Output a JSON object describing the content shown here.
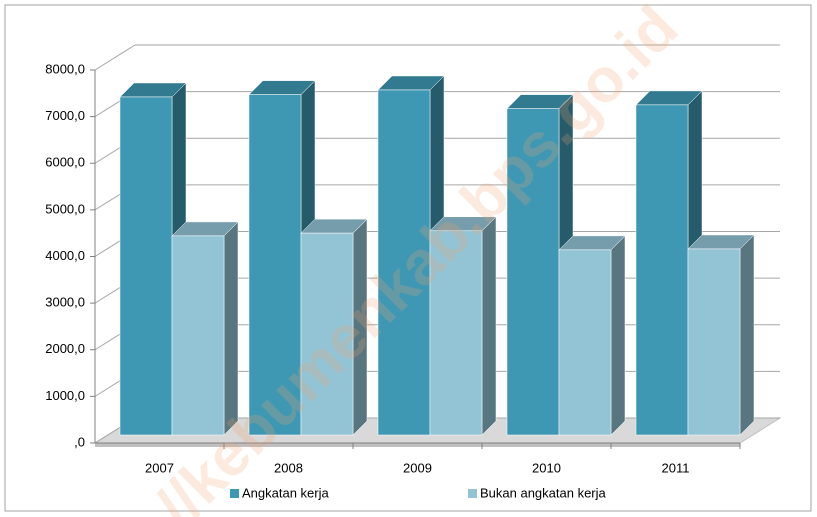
{
  "chart_data": {
    "type": "bar3d",
    "categories": [
      "2007",
      "2008",
      "2009",
      "2010",
      "2011"
    ],
    "series": [
      {
        "name": "Angkatan kerja",
        "color": "#3f98b3",
        "values": [
          7250,
          7300,
          7400,
          7000,
          7080
        ]
      },
      {
        "name": "Bukan angkatan kerja",
        "color": "#93c4d6",
        "values": [
          4270,
          4330,
          4380,
          3970,
          3990
        ]
      }
    ],
    "ylim": [
      0,
      8000
    ],
    "yticks": [
      {
        "value": 0,
        "label": ",0"
      },
      {
        "value": 1000,
        "label": "1000,0"
      },
      {
        "value": 2000,
        "label": "2000,0"
      },
      {
        "value": 3000,
        "label": "3000,0"
      },
      {
        "value": 4000,
        "label": "4000,0"
      },
      {
        "value": 5000,
        "label": "5000,0"
      },
      {
        "value": 6000,
        "label": "6000,0"
      },
      {
        "value": 7000,
        "label": "7000,0"
      },
      {
        "value": 8000,
        "label": "8000,0"
      }
    ],
    "grid": true,
    "legend": "bottom",
    "watermark": "//kebumenkab.bps.go.id"
  }
}
